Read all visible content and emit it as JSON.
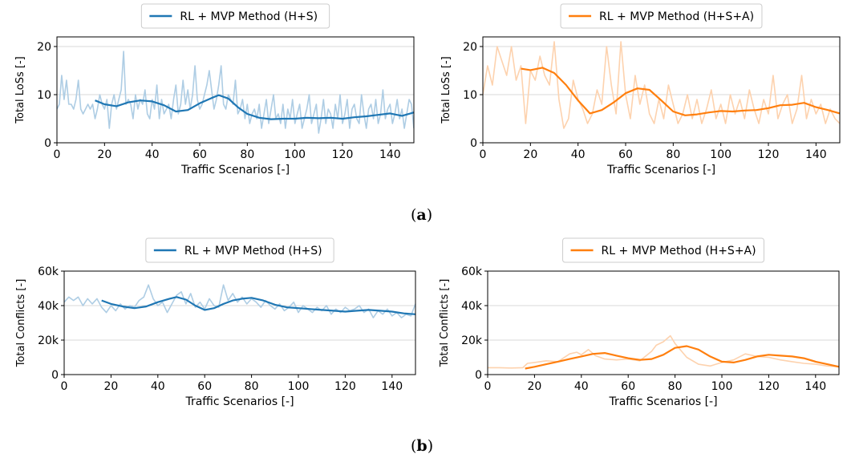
{
  "figure": {
    "caption_a": "a",
    "caption_b": "b"
  },
  "colors": {
    "blue": "#1f77b4",
    "blue_light": "#aecde4",
    "orange": "#ff7f0e",
    "orange_light": "#fdd2ae",
    "grid": "#d9d9d9"
  },
  "chart_data": [
    {
      "id": "a-left",
      "type": "line",
      "title": "",
      "xlabel": "Traffic Scenarios [-]",
      "ylabel": "Total LoSs [-]",
      "xlim": [
        0,
        150
      ],
      "ylim": [
        0,
        22
      ],
      "xticks": [
        0,
        20,
        40,
        60,
        80,
        100,
        120,
        140
      ],
      "yticks": [
        0,
        10,
        20
      ],
      "ytick_labels": [
        "0",
        "10",
        "20"
      ],
      "grid": "horizontal",
      "legend": "top-center",
      "series": [
        {
          "name": "RL + MVP Method (H+S)",
          "role": "smoothed",
          "color": "#1f77b4",
          "x": [
            16,
            20,
            25,
            30,
            35,
            40,
            45,
            50,
            55,
            60,
            65,
            68,
            72,
            76,
            80,
            85,
            90,
            95,
            100,
            105,
            110,
            115,
            120,
            125,
            130,
            135,
            140,
            145,
            150
          ],
          "y": [
            8.8,
            8.0,
            7.6,
            8.4,
            8.8,
            8.6,
            7.8,
            6.5,
            6.8,
            8.2,
            9.3,
            9.9,
            9.2,
            7.4,
            6.0,
            5.2,
            4.9,
            5.0,
            5.0,
            5.2,
            5.1,
            5.2,
            5.0,
            5.3,
            5.5,
            5.8,
            6.1,
            5.6,
            6.3
          ]
        },
        {
          "name": "",
          "role": "raw",
          "color": "#aecde4",
          "x": [
            0,
            1,
            2,
            3,
            4,
            5,
            6,
            7,
            8,
            9,
            10,
            11,
            12,
            13,
            14,
            15,
            16,
            17,
            18,
            19,
            20,
            21,
            22,
            23,
            24,
            25,
            26,
            27,
            28,
            29,
            30,
            31,
            32,
            33,
            34,
            35,
            36,
            37,
            38,
            39,
            40,
            41,
            42,
            43,
            44,
            45,
            46,
            47,
            48,
            49,
            50,
            51,
            52,
            53,
            54,
            55,
            56,
            57,
            58,
            59,
            60,
            61,
            62,
            63,
            64,
            65,
            66,
            67,
            68,
            69,
            70,
            71,
            72,
            73,
            74,
            75,
            76,
            77,
            78,
            79,
            80,
            81,
            82,
            83,
            84,
            85,
            86,
            87,
            88,
            89,
            90,
            91,
            92,
            93,
            94,
            95,
            96,
            97,
            98,
            99,
            100,
            101,
            102,
            103,
            104,
            105,
            106,
            107,
            108,
            109,
            110,
            111,
            112,
            113,
            114,
            115,
            116,
            117,
            118,
            119,
            120,
            121,
            122,
            123,
            124,
            125,
            126,
            127,
            128,
            129,
            130,
            131,
            132,
            133,
            134,
            135,
            136,
            137,
            138,
            139,
            140,
            141,
            142,
            143,
            144,
            145,
            146,
            147,
            148,
            149,
            150
          ],
          "y": [
            7,
            8,
            14,
            9,
            13,
            8,
            8,
            7,
            9,
            13,
            7,
            6,
            7,
            8,
            7,
            8,
            5,
            7,
            10,
            8,
            7,
            9,
            3,
            8,
            10,
            7,
            9,
            11,
            19,
            8,
            9,
            8,
            5,
            10,
            7,
            9,
            8,
            11,
            6,
            5,
            9,
            7,
            12,
            5,
            9,
            6,
            7,
            8,
            5,
            9,
            12,
            6,
            8,
            13,
            8,
            11,
            7,
            10,
            16,
            9,
            7,
            8,
            10,
            12,
            15,
            11,
            7,
            9,
            12,
            16,
            8,
            7,
            10,
            9,
            8,
            13,
            6,
            7,
            9,
            5,
            8,
            4,
            6,
            7,
            5,
            8,
            3,
            6,
            9,
            4,
            7,
            10,
            5,
            6,
            4,
            8,
            3,
            7,
            5,
            9,
            4,
            6,
            8,
            3,
            5,
            7,
            10,
            4,
            6,
            8,
            2,
            5,
            9,
            4,
            7,
            6,
            3,
            8,
            5,
            10,
            4,
            6,
            9,
            3,
            7,
            8,
            5,
            4,
            10,
            6,
            3,
            7,
            8,
            5,
            9,
            4,
            6,
            11,
            5,
            7,
            8,
            4,
            6,
            9,
            5,
            7,
            3,
            6,
            9,
            8,
            3
          ]
        }
      ]
    },
    {
      "id": "a-right",
      "type": "line",
      "title": "",
      "xlabel": "Traffic Scenarios [-]",
      "ylabel": "Total LoSs [-]",
      "xlim": [
        0,
        150
      ],
      "ylim": [
        0,
        22
      ],
      "xticks": [
        0,
        20,
        40,
        60,
        80,
        100,
        120,
        140
      ],
      "yticks": [
        0,
        10,
        20
      ],
      "ytick_labels": [
        "0",
        "10",
        "20"
      ],
      "grid": "horizontal",
      "legend": "top-center",
      "series": [
        {
          "name": "RL + MVP Method (H+S+A)",
          "role": "smoothed",
          "color": "#ff7f0e",
          "x": [
            16,
            20,
            25,
            30,
            35,
            40,
            45,
            50,
            55,
            60,
            65,
            70,
            75,
            80,
            85,
            90,
            95,
            100,
            105,
            110,
            115,
            120,
            125,
            130,
            135,
            140,
            145,
            150
          ],
          "y": [
            15.4,
            15.1,
            15.6,
            14.5,
            12.0,
            8.8,
            6.1,
            6.8,
            8.4,
            10.3,
            11.3,
            11.0,
            8.8,
            6.5,
            5.7,
            5.9,
            6.3,
            6.6,
            6.5,
            6.7,
            6.8,
            7.2,
            7.8,
            7.9,
            8.3,
            7.4,
            6.8,
            6.1
          ]
        },
        {
          "name": "",
          "role": "raw",
          "color": "#fdd2ae",
          "x": [
            0,
            2,
            4,
            6,
            8,
            10,
            12,
            14,
            16,
            18,
            20,
            22,
            24,
            26,
            28,
            30,
            32,
            34,
            36,
            38,
            40,
            42,
            44,
            46,
            48,
            50,
            52,
            54,
            56,
            58,
            60,
            62,
            64,
            66,
            68,
            70,
            72,
            74,
            76,
            78,
            80,
            82,
            84,
            86,
            88,
            90,
            92,
            94,
            96,
            98,
            100,
            102,
            104,
            106,
            108,
            110,
            112,
            114,
            116,
            118,
            120,
            122,
            124,
            126,
            128,
            130,
            132,
            134,
            136,
            138,
            140,
            142,
            144,
            146,
            148,
            150
          ],
          "y": [
            10,
            16,
            12,
            20,
            17,
            14,
            20,
            13,
            16,
            4,
            15,
            13,
            18,
            14,
            12,
            21,
            9,
            3,
            5,
            13,
            9,
            7,
            4,
            6,
            11,
            8,
            20,
            12,
            6,
            21,
            10,
            5,
            14,
            8,
            12,
            6,
            4,
            9,
            5,
            12,
            8,
            4,
            6,
            10,
            5,
            9,
            4,
            7,
            11,
            5,
            8,
            4,
            10,
            6,
            9,
            5,
            11,
            7,
            4,
            9,
            6,
            14,
            5,
            8,
            10,
            4,
            7,
            14,
            5,
            9,
            6,
            8,
            4,
            7,
            5,
            4
          ]
        }
      ]
    },
    {
      "id": "b-left",
      "type": "line",
      "title": "",
      "xlabel": "Traffic Scenarios [-]",
      "ylabel": "Total Conflicts [-]",
      "xlim": [
        0,
        150
      ],
      "ylim": [
        0,
        60000
      ],
      "xticks": [
        0,
        20,
        40,
        60,
        80,
        100,
        120,
        140
      ],
      "yticks": [
        0,
        20000,
        40000,
        60000
      ],
      "ytick_labels": [
        "0",
        "20k",
        "40k",
        "60k"
      ],
      "grid": "horizontal",
      "legend": "top-center",
      "series": [
        {
          "name": "RL + MVP Method (H+S)",
          "role": "smoothed",
          "color": "#1f77b4",
          "x": [
            16,
            20,
            25,
            30,
            35,
            40,
            45,
            48,
            52,
            56,
            60,
            64,
            68,
            72,
            76,
            80,
            85,
            90,
            95,
            100,
            105,
            110,
            115,
            120,
            125,
            130,
            135,
            140,
            145,
            150
          ],
          "y": [
            43000,
            41000,
            39500,
            38500,
            39500,
            42000,
            44000,
            45000,
            43500,
            40000,
            37500,
            38500,
            41000,
            43000,
            44000,
            44500,
            43000,
            40500,
            39000,
            38500,
            38000,
            37500,
            37000,
            36500,
            37000,
            37500,
            37000,
            36500,
            35500,
            35000
          ]
        },
        {
          "name": "",
          "role": "raw",
          "color": "#aecde4",
          "x": [
            0,
            2,
            4,
            6,
            8,
            10,
            12,
            14,
            16,
            18,
            20,
            22,
            24,
            26,
            28,
            30,
            32,
            34,
            36,
            38,
            40,
            42,
            44,
            46,
            48,
            50,
            52,
            54,
            56,
            58,
            60,
            62,
            64,
            66,
            68,
            70,
            72,
            74,
            76,
            78,
            80,
            82,
            84,
            86,
            88,
            90,
            92,
            94,
            96,
            98,
            100,
            102,
            104,
            106,
            108,
            110,
            112,
            114,
            116,
            118,
            120,
            122,
            124,
            126,
            128,
            130,
            132,
            134,
            136,
            138,
            140,
            142,
            144,
            146,
            148,
            150
          ],
          "y": [
            42000,
            45000,
            43000,
            45000,
            40000,
            44000,
            41000,
            44000,
            39000,
            36000,
            40000,
            37000,
            41000,
            38000,
            40000,
            39000,
            43000,
            45000,
            52000,
            44000,
            40000,
            42000,
            36000,
            41000,
            46000,
            48000,
            41000,
            47000,
            39000,
            42000,
            38000,
            44000,
            40000,
            39000,
            52000,
            43000,
            47000,
            42000,
            45000,
            41000,
            44000,
            42000,
            39000,
            43000,
            40000,
            38000,
            41000,
            37000,
            39000,
            42000,
            36000,
            40000,
            38000,
            36000,
            39000,
            37000,
            40000,
            35000,
            38000,
            36000,
            39000,
            37000,
            38000,
            40000,
            36000,
            38000,
            33000,
            37000,
            35000,
            38000,
            34000,
            36000,
            33000,
            35000,
            34000,
            41000
          ]
        }
      ]
    },
    {
      "id": "b-right",
      "type": "line",
      "title": "",
      "xlabel": "Traffic Scenarios [-]",
      "ylabel": "Total Conflicts [-]",
      "xlim": [
        0,
        150
      ],
      "ylim": [
        0,
        60000
      ],
      "xticks": [
        0,
        20,
        40,
        60,
        80,
        100,
        120,
        140
      ],
      "yticks": [
        0,
        20000,
        40000,
        60000
      ],
      "ytick_labels": [
        "0",
        "20k",
        "40k",
        "60k"
      ],
      "grid": "horizontal",
      "legend": "top-center",
      "series": [
        {
          "name": "RL + MVP Method (H+S+A)",
          "role": "smoothed",
          "color": "#ff7f0e",
          "x": [
            16,
            20,
            25,
            30,
            35,
            40,
            45,
            50,
            55,
            60,
            65,
            70,
            75,
            80,
            85,
            90,
            95,
            100,
            105,
            110,
            115,
            120,
            125,
            130,
            135,
            140,
            145,
            150
          ],
          "y": [
            3500,
            4500,
            6000,
            7500,
            9000,
            10500,
            12000,
            12500,
            11000,
            9500,
            8500,
            9000,
            11500,
            15500,
            16500,
            14500,
            10500,
            7500,
            7000,
            8500,
            10500,
            11500,
            11000,
            10500,
            9500,
            7500,
            6000,
            4500
          ]
        },
        {
          "name": "",
          "role": "raw",
          "color": "#fdd2ae",
          "x": [
            0,
            5,
            10,
            15,
            17,
            20,
            25,
            30,
            35,
            38,
            40,
            43,
            46,
            50,
            55,
            60,
            65,
            70,
            72,
            75,
            78,
            80,
            85,
            90,
            95,
            100,
            105,
            110,
            115,
            120,
            125,
            130,
            135,
            140,
            145,
            150
          ],
          "y": [
            4000,
            4000,
            3800,
            4000,
            6500,
            7000,
            8000,
            7500,
            12000,
            13000,
            11500,
            14500,
            11000,
            9000,
            8500,
            9000,
            8000,
            13500,
            17000,
            19000,
            22500,
            18000,
            10000,
            6000,
            5000,
            7000,
            8500,
            12000,
            10500,
            10000,
            8500,
            7500,
            6500,
            6000,
            5000,
            4500
          ]
        }
      ]
    }
  ]
}
